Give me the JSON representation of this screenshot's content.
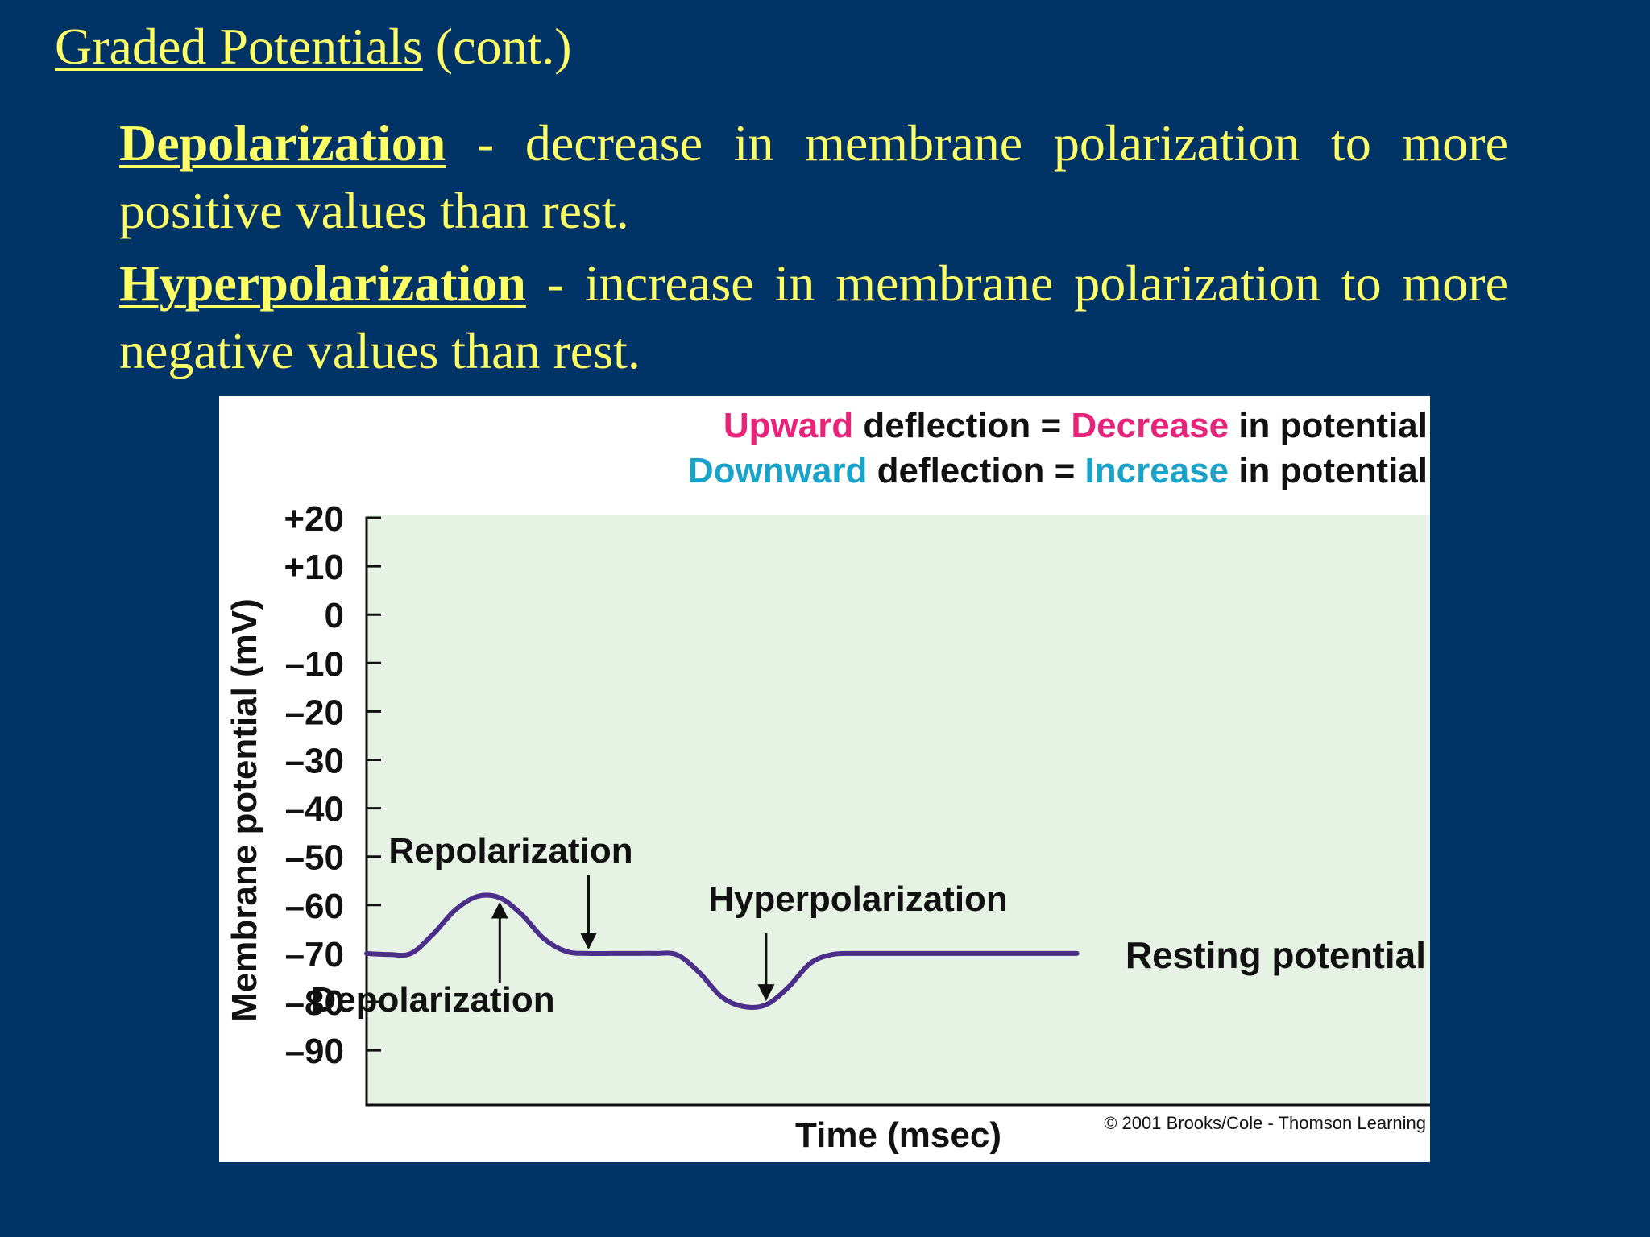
{
  "slide": {
    "title_main": "Graded Potentials",
    "title_suffix": " (cont.)",
    "definitions": [
      {
        "term": "Depolarization",
        "separator": " - ",
        "text": "decrease in membrane polarization to more positive values than rest."
      },
      {
        "term": "Hyperpolarization",
        "separator": " - ",
        "text": "increase in membrane polarization to more negative values than rest."
      }
    ]
  },
  "legend": {
    "line1": {
      "colored": "Upward",
      "middle": " deflection = ",
      "colored2": "Decrease",
      "end": " in potential"
    },
    "line2": {
      "colored": "Downward",
      "middle": " deflection = ",
      "colored2": "Increase",
      "end": " in potential"
    }
  },
  "colors": {
    "background": "#003366",
    "slide_text": "#ffff66",
    "upward": "#e8237a",
    "downward": "#1aa3c9",
    "plot_bg": "#e6f3e4",
    "trace": "#4b2d8a"
  },
  "chart_data": {
    "type": "line",
    "xlabel": "Time (msec)",
    "ylabel": "Membrane potential (mV)",
    "ylim": [
      -90,
      20
    ],
    "yticks": [
      20,
      10,
      0,
      -10,
      -20,
      -30,
      -40,
      -50,
      -60,
      -70,
      -80,
      -90
    ],
    "ytick_labels": [
      "+20",
      "+10",
      "0",
      "–10",
      "–20",
      "–30",
      "–40",
      "–50",
      "–60",
      "–70",
      "–80",
      "–90"
    ],
    "x_ticks_shown": false,
    "grid": false,
    "series": [
      {
        "x": [
          0,
          0.5,
          1,
          1.5,
          2,
          2.5,
          3,
          3.5,
          4,
          4.5,
          5,
          5.5,
          6,
          6.5,
          7,
          7.5,
          8,
          8.5,
          9,
          9.5,
          10,
          10.5,
          11,
          11.5,
          12,
          13,
          14,
          15,
          16
        ],
        "y": [
          -70,
          -70.2,
          -70,
          -66,
          -61,
          -58.2,
          -58.5,
          -62,
          -67,
          -69.6,
          -70,
          -70,
          -70,
          -70,
          -70.3,
          -74,
          -79,
          -81,
          -80.6,
          -77,
          -72,
          -70.2,
          -70,
          -70,
          -70,
          -70,
          -70,
          -70,
          -70
        ]
      }
    ],
    "annotations": [
      {
        "text": "Repolarization",
        "arrow_at": [
          5.0,
          -69.5
        ]
      },
      {
        "text": "Hyperpolarization",
        "arrow_at": [
          9.0,
          -80.5
        ]
      },
      {
        "text": "Depolarization",
        "arrow_at": [
          3.0,
          -59
        ]
      },
      {
        "text": "Resting potential",
        "at": [
          16,
          -70
        ]
      }
    ],
    "copyright": "© 2001 Brooks/Cole - Thomson Learning"
  }
}
